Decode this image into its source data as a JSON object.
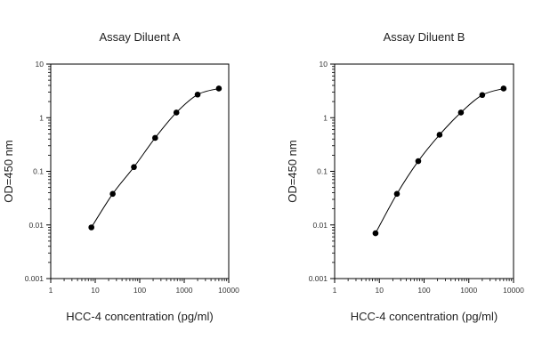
{
  "chart_data": [
    {
      "type": "line",
      "title": "Assay Diluent A",
      "xlabel": "HCC-4 concentration (pg/ml)",
      "ylabel": "OD=450 nm",
      "xscale": "log",
      "yscale": "log",
      "xlim": [
        1,
        10000
      ],
      "ylim": [
        0.001,
        10
      ],
      "xticks": [
        "1",
        "10",
        "100",
        "1000",
        "10000"
      ],
      "yticks": [
        "0.001",
        "0.01",
        "0.1",
        "1",
        "10"
      ],
      "grid": false,
      "markers": "filled-circle",
      "series": [
        {
          "x": [
            8.2,
            24.7,
            74.1,
            222,
            667,
            2000,
            6000
          ],
          "y": [
            0.009,
            0.038,
            0.12,
            0.42,
            1.25,
            2.7,
            3.5
          ]
        }
      ]
    },
    {
      "type": "line",
      "title": "Assay Diluent B",
      "xlabel": "HCC-4 concentration (pg/ml)",
      "ylabel": "OD=450 nm",
      "xscale": "log",
      "yscale": "log",
      "xlim": [
        1,
        10000
      ],
      "ylim": [
        0.001,
        10
      ],
      "xticks": [
        "1",
        "10",
        "100",
        "1000",
        "10000"
      ],
      "yticks": [
        "0.001",
        "0.01",
        "0.1",
        "1",
        "10"
      ],
      "grid": false,
      "markers": "filled-circle",
      "series": [
        {
          "x": [
            8.2,
            24.7,
            74.1,
            222,
            667,
            2000,
            6000
          ],
          "y": [
            0.007,
            0.038,
            0.155,
            0.48,
            1.25,
            2.65,
            3.5
          ]
        }
      ]
    }
  ]
}
